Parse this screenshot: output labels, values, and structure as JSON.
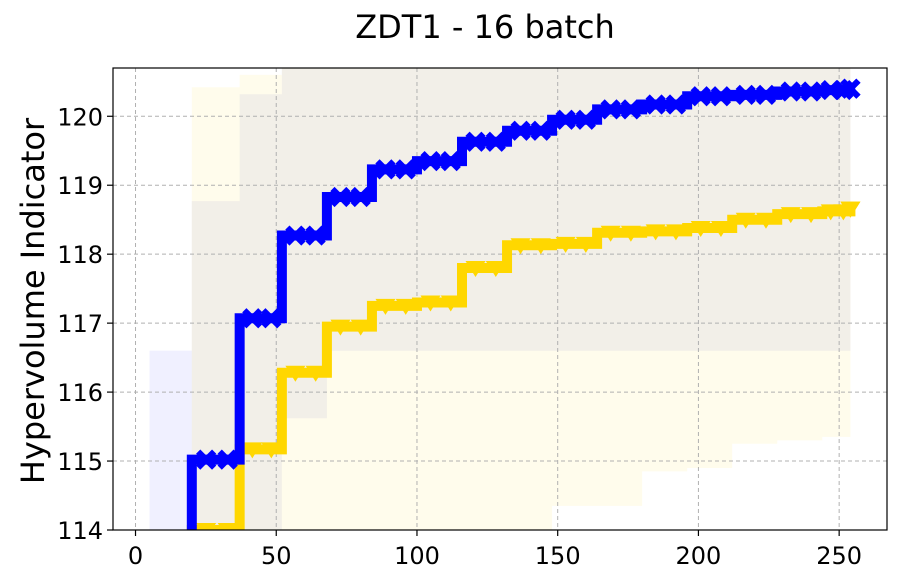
{
  "chart_data": {
    "type": "line",
    "title": "ZDT1 - 16 batch",
    "xlabel": "",
    "ylabel": "Hypervolume Indicator",
    "xlim": [
      -8,
      267
    ],
    "ylim": [
      114,
      120.7
    ],
    "xticks": [
      0,
      50,
      100,
      150,
      200,
      250
    ],
    "yticks": [
      114,
      115,
      116,
      117,
      118,
      119,
      120
    ],
    "grid": true,
    "legend": "none",
    "series": [
      {
        "color": "#0000ff",
        "marker": "x-thick",
        "x": [
          20,
          37,
          52,
          68,
          84,
          100,
          116,
          132,
          148,
          164,
          180,
          196,
          212,
          228,
          244,
          254
        ],
        "y": [
          115.02,
          117.07,
          118.27,
          118.83,
          119.23,
          119.35,
          119.63,
          119.79,
          119.95,
          120.1,
          120.17,
          120.29,
          120.31,
          120.36,
          120.38,
          120.4
        ],
        "band_lower": [
          114.0,
          114.0,
          115.62,
          116.6,
          116.6,
          116.6,
          116.6,
          116.6,
          116.6,
          116.6,
          116.6,
          116.6,
          116.6,
          116.6,
          116.6,
          116.6
        ],
        "band_upper": [
          118.77,
          120.32,
          120.7,
          120.7,
          120.7,
          120.7,
          120.7,
          120.7,
          120.7,
          120.7,
          120.7,
          120.7,
          120.7,
          120.7,
          120.7,
          120.7
        ],
        "band_color": "#b4b4e6"
      },
      {
        "color": "#ffd700",
        "marker": "triangle-down",
        "x": [
          20,
          37,
          52,
          68,
          84,
          100,
          116,
          132,
          148,
          164,
          180,
          196,
          212,
          228,
          244,
          254
        ],
        "y": [
          114.0,
          115.17,
          116.28,
          116.95,
          117.25,
          117.3,
          117.8,
          118.13,
          118.15,
          118.31,
          118.33,
          118.38,
          118.5,
          118.58,
          118.62,
          118.66
        ],
        "band_lower": [
          114.0,
          114.0,
          114.0,
          114.0,
          114.0,
          114.0,
          114.0,
          114.0,
          114.35,
          114.35,
          114.85,
          114.9,
          115.25,
          115.3,
          115.35,
          115.5
        ],
        "band_upper": [
          120.42,
          120.6,
          120.7,
          120.7,
          120.7,
          120.7,
          120.7,
          120.7,
          120.7,
          120.7,
          120.7,
          120.7,
          120.7,
          120.7,
          120.7,
          120.7
        ],
        "band_color": "#fff5c8"
      }
    ],
    "extra_band": {
      "x": [
        5,
        20
      ],
      "lower": 114.0,
      "upper": 116.6,
      "color": "#e6e6ff"
    }
  }
}
